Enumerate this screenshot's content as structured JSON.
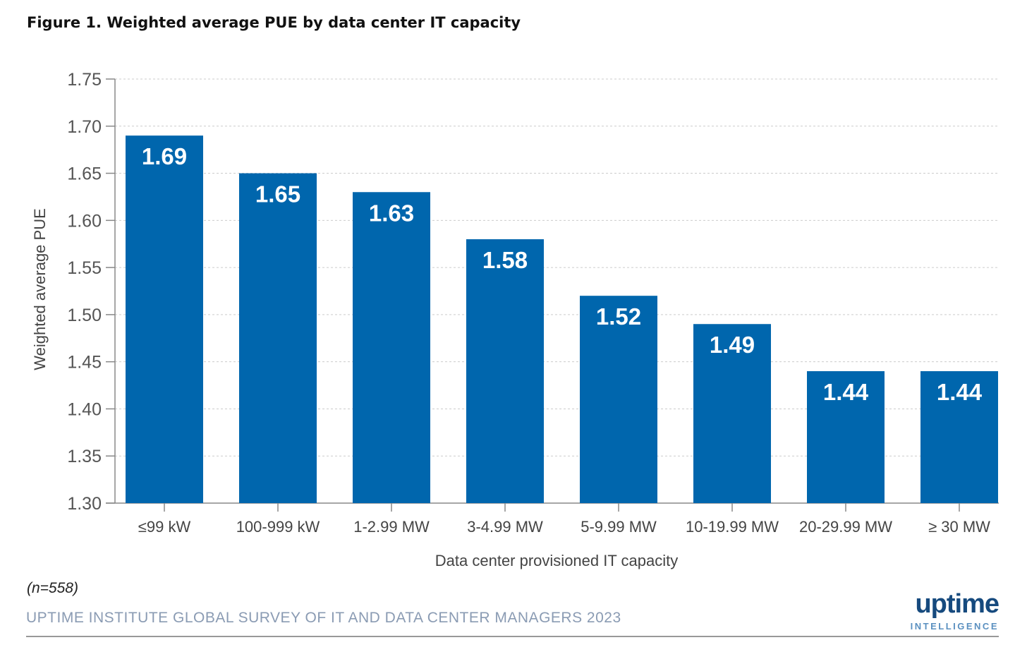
{
  "chart_data": {
    "type": "bar",
    "title": "Figure 1. Weighted average PUE by data center IT capacity",
    "xlabel": "Data center provisioned IT capacity",
    "ylabel": "Weighted average PUE",
    "ylim": [
      1.3,
      1.75
    ],
    "yticks": [
      1.3,
      1.35,
      1.4,
      1.45,
      1.5,
      1.55,
      1.6,
      1.65,
      1.7,
      1.75
    ],
    "grid": true,
    "categories": [
      "≤99 kW",
      "100-999 kW",
      "1-2.99 MW",
      "3-4.99 MW",
      "5-9.99 MW",
      "10-19.99 MW",
      "20-29.99 MW",
      "≥ 30 MW"
    ],
    "values": [
      1.69,
      1.65,
      1.63,
      1.58,
      1.52,
      1.49,
      1.44,
      1.44
    ],
    "bar_color": "#0066ad"
  },
  "footer": {
    "note": "(n=558)",
    "source": "UPTIME INSTITUTE GLOBAL SURVEY OF IT AND DATA CENTER MANAGERS 2023",
    "logo_main": "uptime",
    "logo_sub": "INTELLIGENCE"
  }
}
